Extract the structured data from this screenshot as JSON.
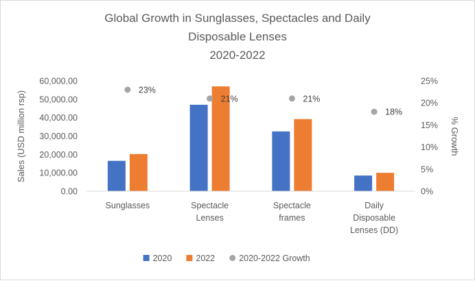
{
  "chart_data": {
    "type": "bar",
    "title_lines": [
      "Global Growth in Sunglasses, Spectacles and Daily",
      "Disposable Lenses",
      "2020-2022"
    ],
    "ylabel_left": "Sales (USD million rsp)",
    "ylabel_right": "% Growth",
    "categories": [
      [
        "Sunglasses"
      ],
      [
        "Spectacle",
        "Lenses"
      ],
      [
        "Spectacle",
        "frames"
      ],
      [
        "Daily",
        "Disposable",
        "Lenses (DD)"
      ]
    ],
    "y_left": {
      "min": 0,
      "max": 60000,
      "ticks": [
        0,
        10000,
        20000,
        30000,
        40000,
        50000,
        60000
      ],
      "tick_labels": [
        "0.00",
        "10,000.00",
        "20,000.00",
        "30,000.00",
        "40,000.00",
        "50,000.00",
        "60,000.00"
      ]
    },
    "y_right": {
      "min": 0,
      "max": 25,
      "ticks": [
        0,
        5,
        10,
        15,
        20,
        25
      ],
      "tick_labels": [
        "0%",
        "5%",
        "10%",
        "15%",
        "20%",
        "25%"
      ]
    },
    "series": [
      {
        "name": "2020",
        "type": "bar",
        "axis": "left",
        "color": "#4472C4",
        "values": [
          16500,
          47000,
          32500,
          8500
        ]
      },
      {
        "name": "2022",
        "type": "bar",
        "axis": "left",
        "color": "#ED7D31",
        "values": [
          20200,
          57000,
          39200,
          10000
        ]
      },
      {
        "name": "2020-2022 Growth",
        "type": "scatter",
        "axis": "right",
        "color": "#A5A5A5",
        "values": [
          23,
          21,
          21,
          18
        ],
        "labels": [
          "23%",
          "21%",
          "21%",
          "18%"
        ]
      }
    ],
    "grid": false,
    "legend_position": "bottom"
  }
}
